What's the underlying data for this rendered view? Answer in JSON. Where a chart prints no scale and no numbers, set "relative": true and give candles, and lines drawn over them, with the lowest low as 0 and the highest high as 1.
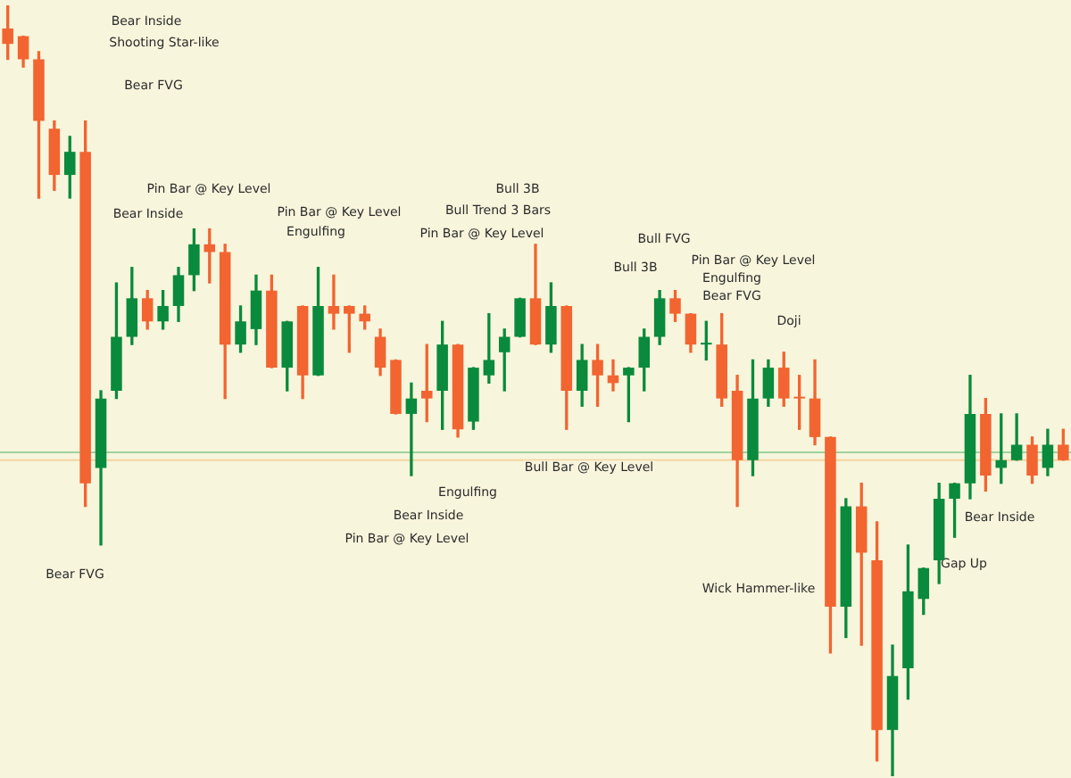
{
  "chart_data": {
    "type": "candlestick",
    "relative": true,
    "categories": [
      null,
      null,
      null,
      null,
      null,
      null,
      null,
      null,
      null,
      null,
      null,
      null,
      null,
      null,
      null,
      null,
      null,
      null,
      null,
      null,
      null,
      null,
      null,
      null,
      null,
      null,
      null,
      null,
      null,
      null,
      null,
      null,
      null,
      null,
      null,
      null,
      null,
      null,
      null,
      null,
      null,
      null,
      null,
      null,
      null,
      null,
      null,
      null,
      null,
      null,
      null,
      null,
      null,
      null,
      null,
      null,
      null,
      null,
      null,
      null,
      null,
      null,
      null,
      null,
      null,
      null,
      null,
      null,
      null
    ],
    "ohlc": [
      [
        0.97,
        1.0,
        0.93,
        0.95
      ],
      [
        0.96,
        0.96,
        0.92,
        0.93
      ],
      [
        0.93,
        0.94,
        0.75,
        0.85
      ],
      [
        0.84,
        0.85,
        0.76,
        0.78
      ],
      [
        0.78,
        0.83,
        0.75,
        0.81
      ],
      [
        0.81,
        0.85,
        0.35,
        0.38
      ],
      [
        0.4,
        0.5,
        0.3,
        0.49
      ],
      [
        0.5,
        0.64,
        0.49,
        0.57
      ],
      [
        0.57,
        0.66,
        0.56,
        0.62
      ],
      [
        0.62,
        0.63,
        0.58,
        0.59
      ],
      [
        0.59,
        0.63,
        0.58,
        0.61
      ],
      [
        0.61,
        0.66,
        0.59,
        0.65
      ],
      [
        0.65,
        0.71,
        0.63,
        0.69
      ],
      [
        0.69,
        0.71,
        0.64,
        0.68
      ],
      [
        0.68,
        0.69,
        0.49,
        0.56
      ],
      [
        0.56,
        0.61,
        0.55,
        0.59
      ],
      [
        0.58,
        0.65,
        0.56,
        0.63
      ],
      [
        0.63,
        0.65,
        0.53,
        0.53
      ],
      [
        0.53,
        0.59,
        0.5,
        0.59
      ],
      [
        0.61,
        0.61,
        0.49,
        0.52
      ],
      [
        0.52,
        0.66,
        0.52,
        0.61
      ],
      [
        0.61,
        0.65,
        0.58,
        0.6
      ],
      [
        0.61,
        0.61,
        0.55,
        0.6
      ],
      [
        0.6,
        0.61,
        0.58,
        0.59
      ],
      [
        0.57,
        0.58,
        0.52,
        0.53
      ],
      [
        0.54,
        0.54,
        0.47,
        0.47
      ],
      [
        0.47,
        0.51,
        0.39,
        0.49
      ],
      [
        0.5,
        0.56,
        0.46,
        0.49
      ],
      [
        0.5,
        0.59,
        0.45,
        0.56
      ],
      [
        0.56,
        0.56,
        0.44,
        0.45
      ],
      [
        0.46,
        0.53,
        0.45,
        0.53
      ],
      [
        0.52,
        0.6,
        0.51,
        0.54
      ],
      [
        0.55,
        0.58,
        0.5,
        0.57
      ],
      [
        0.57,
        0.62,
        0.57,
        0.62
      ],
      [
        0.62,
        0.69,
        0.56,
        0.56
      ],
      [
        0.56,
        0.64,
        0.55,
        0.61
      ],
      [
        0.61,
        0.61,
        0.45,
        0.5
      ],
      [
        0.5,
        0.56,
        0.48,
        0.54
      ],
      [
        0.54,
        0.56,
        0.48,
        0.52
      ],
      [
        0.52,
        0.54,
        0.5,
        0.51
      ],
      [
        0.52,
        0.53,
        0.46,
        0.53
      ],
      [
        0.53,
        0.58,
        0.5,
        0.57
      ],
      [
        0.57,
        0.63,
        0.56,
        0.62
      ],
      [
        0.62,
        0.63,
        0.59,
        0.6
      ],
      [
        0.6,
        0.6,
        0.55,
        0.56
      ],
      [
        0.56,
        0.59,
        0.54,
        0.56
      ],
      [
        0.56,
        0.6,
        0.48,
        0.49
      ],
      [
        0.5,
        0.52,
        0.35,
        0.41
      ],
      [
        0.41,
        0.54,
        0.39,
        0.49
      ],
      [
        0.49,
        0.54,
        0.48,
        0.53
      ],
      [
        0.53,
        0.55,
        0.48,
        0.49
      ],
      [
        0.49,
        0.52,
        0.45,
        0.49
      ],
      [
        0.49,
        0.54,
        0.43,
        0.44
      ],
      [
        0.44,
        0.44,
        0.16,
        0.22
      ],
      [
        0.22,
        0.36,
        0.18,
        0.35
      ],
      [
        0.35,
        0.38,
        0.17,
        0.29
      ],
      [
        0.28,
        0.33,
        0.02,
        0.06
      ],
      [
        0.06,
        0.17,
        0.0,
        0.13
      ],
      [
        0.14,
        0.3,
        0.1,
        0.24
      ],
      [
        0.23,
        0.27,
        0.21,
        0.27
      ],
      [
        0.28,
        0.38,
        0.25,
        0.36
      ],
      [
        0.36,
        0.38,
        0.31,
        0.38
      ],
      [
        0.38,
        0.52,
        0.36,
        0.47
      ],
      [
        0.47,
        0.49,
        0.37,
        0.39
      ],
      [
        0.4,
        0.47,
        0.38,
        0.41
      ],
      [
        0.41,
        0.47,
        0.41,
        0.43
      ],
      [
        0.43,
        0.44,
        0.38,
        0.39
      ],
      [
        0.4,
        0.45,
        0.39,
        0.43
      ],
      [
        0.43,
        0.45,
        0.41,
        0.41
      ]
    ],
    "colors": [
      "#f26430",
      "#f26430",
      "#f26430",
      "#f26430",
      "#0a8a3c",
      "#f26430",
      "#0a8a3c",
      "#0a8a3c",
      "#0a8a3c",
      "#f26430",
      "#0a8a3c",
      "#0a8a3c",
      "#0a8a3c",
      "#f26430",
      "#f26430",
      "#0a8a3c",
      "#0a8a3c",
      "#f26430",
      "#0a8a3c",
      "#f26430",
      "#0a8a3c",
      "#f26430",
      "#f26430",
      "#f26430",
      "#f26430",
      "#f26430",
      "#0a8a3c",
      "#f26430",
      "#0a8a3c",
      "#f26430",
      "#0a8a3c",
      "#0a8a3c",
      "#0a8a3c",
      "#0a8a3c",
      "#f26430",
      "#0a8a3c",
      "#f26430",
      "#0a8a3c",
      "#f26430",
      "#f26430",
      "#0a8a3c",
      "#0a8a3c",
      "#0a8a3c",
      "#f26430",
      "#f26430",
      "#0a8a3c",
      "#f26430",
      "#f26430",
      "#0a8a3c",
      "#0a8a3c",
      "#f26430",
      "#f26430",
      "#f26430",
      "#f26430",
      "#0a8a3c",
      "#f26430",
      "#f26430",
      "#0a8a3c",
      "#0a8a3c",
      "#0a8a3c",
      "#0a8a3c",
      "#0a8a3c",
      "#0a8a3c",
      "#f26430",
      "#0a8a3c",
      "#0a8a3c",
      "#f26430",
      "#0a8a3c",
      "#f26430"
    ],
    "ref_lines": [
      {
        "axis": "y",
        "value": 0.42,
        "color": "#9fd39f"
      },
      {
        "axis": "y",
        "value": 0.41,
        "color": "#f5d3a0"
      }
    ],
    "annotations": [
      "Bear Inside",
      "Shooting Star-like",
      "Bear FVG",
      "Bear FVG",
      "Bear Inside",
      "Pin Bar @ Key Level",
      "Engulfing",
      "Pin Bar @ Key Level",
      "Pin Bar @ Key Level",
      "Bear Inside",
      "Engulfing",
      "Pin Bar @ Key Level",
      "Bull Trend 3 Bars",
      "Bull 3B",
      "Bull Bar @ Key Level",
      "Bull 3B",
      "Bull FVG",
      "Bear FVG",
      "Engulfing",
      "Pin Bar @ Key Level",
      "Doji",
      "Wick Hammer-like",
      "Gap Up",
      "Bear Inside"
    ]
  }
}
